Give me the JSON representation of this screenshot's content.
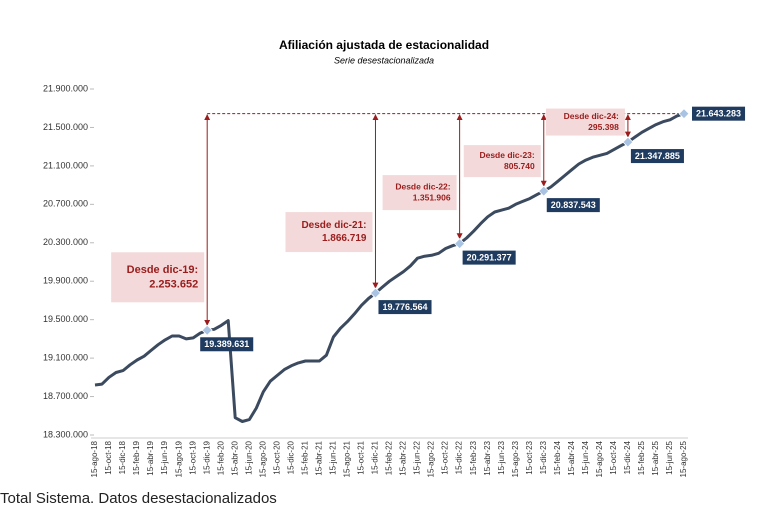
{
  "chart_data": {
    "type": "line",
    "title": "Afiliación ajustada de estacionalidad",
    "subtitle": "Serie desestacionalizada",
    "footer": "Total Sistema. Datos desestacionalizados",
    "categories": [
      "15-ago-18",
      null,
      "15-oct-18",
      null,
      "15-dic-18",
      null,
      "15-feb-19",
      null,
      "15-abr-19",
      null,
      "15-jun-19",
      null,
      "15-ago-19",
      null,
      "15-oct-19",
      null,
      "15-dic-19",
      null,
      "15-feb-20",
      null,
      "15-abr-20",
      null,
      "15-jun-20",
      null,
      "15-ago-20",
      null,
      "15-oct-20",
      null,
      "15-dic-20",
      null,
      "15-feb-21",
      null,
      "15-abr-21",
      null,
      "15-jun-21",
      null,
      "15-ago-21",
      null,
      "15-oct-21",
      null,
      "15-dic-21",
      null,
      "15-feb-22",
      null,
      "15-abr-22",
      null,
      "15-jun-22",
      null,
      "15-ago-22",
      null,
      "15-oct-22",
      null,
      "15-dic-22",
      null,
      "15-feb-23",
      null,
      "15-abr-23",
      null,
      "15-jun-23",
      null,
      "15-ago-23",
      null,
      "15-oct-23",
      null,
      "15-dic-23",
      null,
      "15-feb-24",
      null,
      "15-abr-24",
      null,
      "15-jun-24",
      null,
      "15-ago-24",
      null,
      "15-oct-24",
      null,
      "15-dic-24",
      null,
      "15-feb-25",
      null,
      "15-abr-25",
      null,
      "15-jun-25",
      null,
      "15-ago-25"
    ],
    "values": [
      18820000,
      18830000,
      18900000,
      18950000,
      18970000,
      19030000,
      19080000,
      19120000,
      19180000,
      19240000,
      19290000,
      19330000,
      19330000,
      19300000,
      19310000,
      19360000,
      19389631,
      19400000,
      19440000,
      19490000,
      18480000,
      18440000,
      18460000,
      18580000,
      18750000,
      18860000,
      18920000,
      18980000,
      19020000,
      19050000,
      19070000,
      19070000,
      19070000,
      19130000,
      19320000,
      19410000,
      19480000,
      19560000,
      19650000,
      19720000,
      19776564,
      19840000,
      19900000,
      19950000,
      20000000,
      20060000,
      20140000,
      20160000,
      20170000,
      20190000,
      20240000,
      20270000,
      20291377,
      20350000,
      20420000,
      20500000,
      20570000,
      20620000,
      20640000,
      20660000,
      20700000,
      20730000,
      20760000,
      20800000,
      20837543,
      20880000,
      20940000,
      21000000,
      21060000,
      21120000,
      21160000,
      21190000,
      21210000,
      21230000,
      21270000,
      21310000,
      21347885,
      21400000,
      21450000,
      21490000,
      21530000,
      21560000,
      21580000,
      21620000,
      21643283
    ],
    "value_labels": [
      null,
      null,
      null,
      null,
      null,
      null,
      null,
      null,
      null,
      null,
      null,
      null,
      null,
      null,
      null,
      null,
      "19.389.631",
      null,
      null,
      null,
      null,
      null,
      null,
      null,
      null,
      null,
      null,
      null,
      null,
      null,
      null,
      null,
      null,
      null,
      null,
      null,
      null,
      null,
      null,
      null,
      "19.776.564",
      null,
      null,
      null,
      null,
      null,
      null,
      null,
      null,
      null,
      null,
      null,
      "20.291.377",
      null,
      null,
      null,
      null,
      null,
      null,
      null,
      null,
      null,
      null,
      null,
      "20.837.543",
      null,
      null,
      null,
      null,
      null,
      null,
      null,
      null,
      null,
      null,
      null,
      "21.347.885",
      null,
      null,
      null,
      null,
      null,
      null,
      null,
      "21.643.283"
    ],
    "color": "#3b4a5f",
    "ylim": [
      18300000,
      21900000
    ],
    "yticks": [
      {
        "value": 18300000,
        "label": "18.300.000"
      },
      {
        "value": 18700000,
        "label": "18.700.000"
      },
      {
        "value": 19100000,
        "label": "19.100.000"
      },
      {
        "value": 19500000,
        "label": "19.500.000"
      },
      {
        "value": 19900000,
        "label": "19.900.000"
      },
      {
        "value": 20300000,
        "label": "20.300.000"
      },
      {
        "value": 20700000,
        "label": "20.700.000"
      },
      {
        "value": 21100000,
        "label": "21.100.000"
      },
      {
        "value": 21500000,
        "label": "21.500.000"
      },
      {
        "value": 21900000,
        "label": "21.900.000"
      }
    ],
    "annotations": [
      {
        "text": "Desde dic-19:",
        "value": 2253652,
        "label": "2.253.652"
      },
      {
        "text": "Desde dic-21:",
        "value": 1866719,
        "label": "1.866.719"
      },
      {
        "text": "Desde dic-22:",
        "value": 1351906,
        "label": "1.351.906"
      },
      {
        "text": "Desde dic-23:",
        "value": 805740,
        "label": "805.740"
      },
      {
        "text": "Desde dic-24:",
        "value": 295398,
        "label": "295.398"
      }
    ]
  }
}
